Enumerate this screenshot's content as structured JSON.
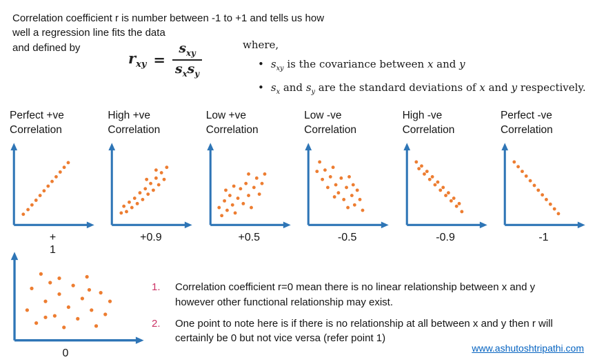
{
  "intro": {
    "line1": "Correlation coefficient r is number between -1 to +1 and tells us how",
    "line2": "well a regression line fits the data",
    "line3": "and defined by"
  },
  "formula": {
    "r": "r",
    "r_sub": "xy",
    "eq": "=",
    "s": "s",
    "s_xy_sub": "xy",
    "s_x_sub": "x",
    "s_y_sub": "y"
  },
  "where": {
    "label": "where,",
    "bullet_glyph": "•",
    "b1": {
      "v1": "s",
      "v1sub": "xy",
      "t1": " is the covariance between ",
      "v2": "x",
      "t2": " and ",
      "v3": "y"
    },
    "b2": {
      "v1": "s",
      "v1sub": "x",
      "t1": " and ",
      "v2": "s",
      "v2sub": "y",
      "t2": " are the standard deviations of ",
      "v3": "x",
      "t3": " and ",
      "v4": "y",
      "t4": " respectively."
    }
  },
  "plots": [
    {
      "title1": "Perfect +ve",
      "title2": "Correlation",
      "value_top": "+",
      "value": "1",
      "r": 1.0,
      "points": [
        [
          6,
          8
        ],
        [
          13,
          15
        ],
        [
          19,
          22
        ],
        [
          25,
          29
        ],
        [
          31,
          36
        ],
        [
          37,
          43
        ],
        [
          43,
          50
        ],
        [
          49,
          57
        ],
        [
          55,
          64
        ],
        [
          61,
          71
        ],
        [
          67,
          78
        ],
        [
          73,
          85
        ]
      ]
    },
    {
      "title1": "High +ve",
      "title2": "Correlation",
      "value": "+0.9",
      "r": 0.9,
      "points": [
        [
          6,
          10
        ],
        [
          10,
          20
        ],
        [
          14,
          12
        ],
        [
          18,
          26
        ],
        [
          22,
          18
        ],
        [
          26,
          32
        ],
        [
          30,
          24
        ],
        [
          34,
          40
        ],
        [
          38,
          30
        ],
        [
          42,
          46
        ],
        [
          46,
          38
        ],
        [
          50,
          54
        ],
        [
          54,
          44
        ],
        [
          58,
          62
        ],
        [
          62,
          52
        ],
        [
          66,
          70
        ],
        [
          70,
          60
        ],
        [
          74,
          78
        ],
        [
          58,
          74
        ],
        [
          44,
          60
        ]
      ]
    },
    {
      "title1": "Low +ve",
      "title2": "Correlation",
      "value": "+0.5",
      "r": 0.5,
      "points": [
        [
          5,
          18
        ],
        [
          9,
          6
        ],
        [
          13,
          28
        ],
        [
          17,
          14
        ],
        [
          21,
          36
        ],
        [
          25,
          22
        ],
        [
          29,
          10
        ],
        [
          33,
          32
        ],
        [
          37,
          46
        ],
        [
          41,
          24
        ],
        [
          45,
          54
        ],
        [
          49,
          36
        ],
        [
          53,
          18
        ],
        [
          57,
          48
        ],
        [
          61,
          62
        ],
        [
          65,
          38
        ],
        [
          69,
          54
        ],
        [
          73,
          68
        ],
        [
          49,
          68
        ],
        [
          27,
          50
        ],
        [
          15,
          44
        ]
      ]
    },
    {
      "title1": "Low -ve",
      "title2": "Correlation",
      "value": "-0.5",
      "r": -0.5,
      "points": [
        [
          5,
          72
        ],
        [
          9,
          86
        ],
        [
          13,
          60
        ],
        [
          17,
          74
        ],
        [
          21,
          48
        ],
        [
          25,
          64
        ],
        [
          29,
          78
        ],
        [
          33,
          52
        ],
        [
          37,
          40
        ],
        [
          41,
          62
        ],
        [
          45,
          30
        ],
        [
          49,
          48
        ],
        [
          53,
          64
        ],
        [
          57,
          36
        ],
        [
          61,
          22
        ],
        [
          65,
          44
        ],
        [
          69,
          30
        ],
        [
          73,
          14
        ],
        [
          51,
          18
        ],
        [
          31,
          34
        ],
        [
          59,
          52
        ]
      ]
    },
    {
      "title1": "High -ve",
      "title2": "Correlation",
      "value": "-0.9",
      "r": -0.9,
      "points": [
        [
          6,
          86
        ],
        [
          10,
          76
        ],
        [
          14,
          80
        ],
        [
          18,
          68
        ],
        [
          22,
          72
        ],
        [
          26,
          60
        ],
        [
          30,
          64
        ],
        [
          34,
          52
        ],
        [
          38,
          56
        ],
        [
          42,
          44
        ],
        [
          46,
          48
        ],
        [
          50,
          36
        ],
        [
          54,
          40
        ],
        [
          58,
          28
        ],
        [
          62,
          32
        ],
        [
          66,
          20
        ],
        [
          70,
          24
        ],
        [
          74,
          12
        ]
      ]
    },
    {
      "title1": "Perfect -ve",
      "title2": "Correlation",
      "value": "-1",
      "r": -1.0,
      "points": [
        [
          6,
          86
        ],
        [
          12,
          79
        ],
        [
          18,
          72
        ],
        [
          24,
          65
        ],
        [
          30,
          58
        ],
        [
          36,
          51
        ],
        [
          42,
          44
        ],
        [
          48,
          37
        ],
        [
          54,
          30
        ],
        [
          60,
          23
        ],
        [
          66,
          16
        ],
        [
          72,
          9
        ]
      ]
    },
    {
      "value": "0",
      "r": 0,
      "points": [
        [
          6,
          34
        ],
        [
          10,
          64
        ],
        [
          14,
          16
        ],
        [
          18,
          84
        ],
        [
          22,
          46
        ],
        [
          26,
          72
        ],
        [
          30,
          26
        ],
        [
          34,
          56
        ],
        [
          38,
          10
        ],
        [
          42,
          38
        ],
        [
          46,
          68
        ],
        [
          50,
          22
        ],
        [
          54,
          50
        ],
        [
          58,
          80
        ],
        [
          62,
          34
        ],
        [
          66,
          12
        ],
        [
          70,
          58
        ],
        [
          74,
          28
        ],
        [
          78,
          46
        ],
        [
          34,
          78
        ],
        [
          22,
          24
        ],
        [
          60,
          62
        ]
      ]
    }
  ],
  "notes": [
    {
      "num": "1.",
      "text": "Correlation coefficient r=0 mean there is no linear relationship between x and y however other functional relationship may exist."
    },
    {
      "num": "2.",
      "text": "One point to note here is if there is no relationship at all between x and y then r will certainly be 0 but not vice versa (refer point 1)"
    }
  ],
  "footer": {
    "link": "www.ashutoshtripathi.com"
  },
  "colors": {
    "axis": "#2E75B6",
    "dot": "#ED7D31",
    "note_number": "#CC3366",
    "link": "#0563C1"
  }
}
